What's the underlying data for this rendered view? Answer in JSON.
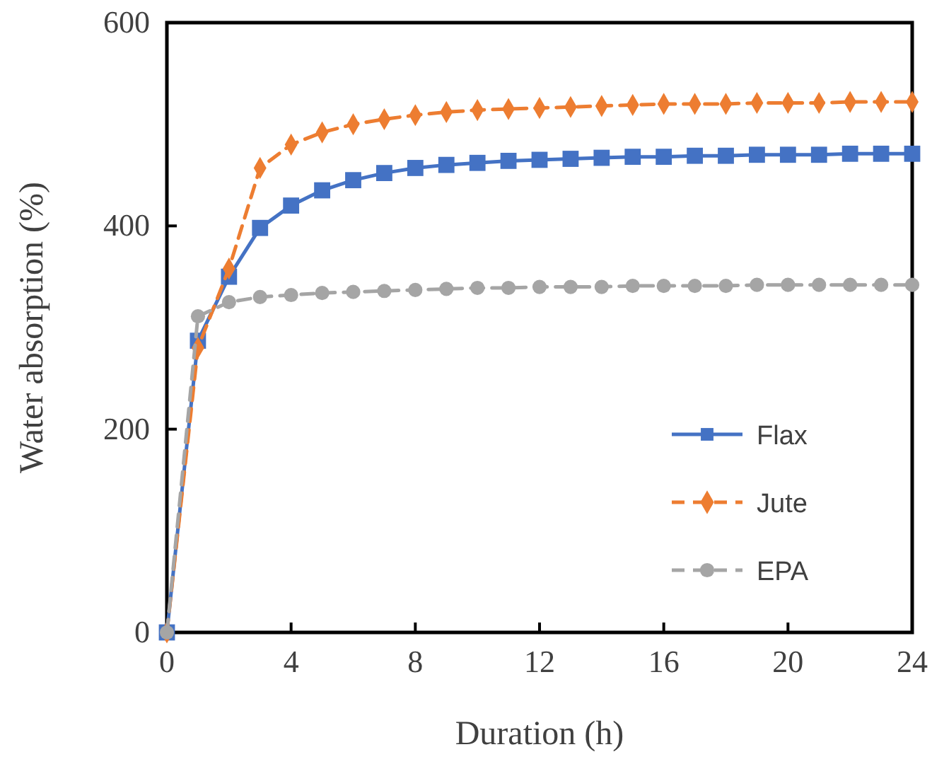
{
  "chart_data": {
    "type": "line",
    "xlabel": "Duration (h)",
    "ylabel": "Water absorption (%)",
    "x": [
      0,
      1,
      2,
      3,
      4,
      5,
      6,
      7,
      8,
      9,
      10,
      11,
      12,
      13,
      14,
      15,
      16,
      17,
      18,
      19,
      20,
      21,
      22,
      23,
      24
    ],
    "xlim": [
      0,
      24
    ],
    "xticks": [
      0,
      4,
      8,
      12,
      16,
      20,
      24
    ],
    "ylim": [
      0,
      600
    ],
    "yticks": [
      0,
      200,
      400,
      600
    ],
    "grid": false,
    "legend": "bottom right",
    "series": [
      {
        "name": "Flax",
        "color": "#4472c4",
        "marker": "square",
        "line_style": "solid",
        "values": [
          0,
          287,
          350,
          398,
          420,
          435,
          445,
          452,
          457,
          460,
          462,
          464,
          465,
          466,
          467,
          468,
          468,
          469,
          469,
          470,
          470,
          470,
          471,
          471,
          471
        ]
      },
      {
        "name": "Jute",
        "color": "#ed7d31",
        "marker": "diamond",
        "line_style": "dashed",
        "values": [
          0,
          280,
          358,
          457,
          480,
          492,
          500,
          505,
          509,
          512,
          514,
          515,
          516,
          517,
          518,
          519,
          520,
          520,
          520,
          521,
          521,
          521,
          522,
          522,
          522
        ]
      },
      {
        "name": "EPA",
        "color": "#a5a5a5",
        "marker": "circle",
        "line_style": "dashed",
        "values": [
          0,
          311,
          325,
          330,
          332,
          334,
          335,
          336,
          337,
          338,
          339,
          339,
          340,
          340,
          340,
          341,
          341,
          341,
          341,
          342,
          342,
          342,
          342,
          342,
          342
        ]
      }
    ]
  }
}
